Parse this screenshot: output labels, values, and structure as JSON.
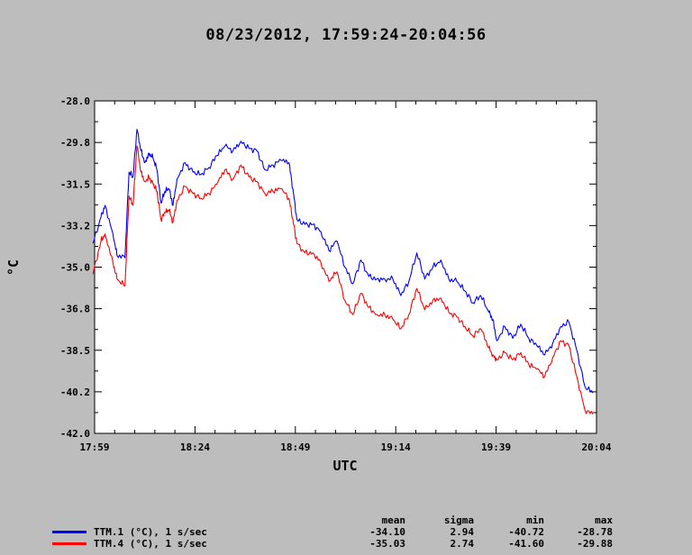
{
  "title": "08/23/2012, 17:59:24-20:04:56",
  "chart_data": {
    "type": "line",
    "title": "08/23/2012, 17:59:24-20:04:56",
    "xlabel": "UTC",
    "ylabel": "°C",
    "x_ticks": [
      "17:59",
      "18:24",
      "18:49",
      "19:14",
      "19:39",
      "20:04"
    ],
    "y_ticks": [
      "-28.0",
      "-29.8",
      "-31.5",
      "-33.2",
      "-35.0",
      "-36.8",
      "-38.5",
      "-40.2",
      "-42.0"
    ],
    "xlim": [
      "17:59:24",
      "20:04:56"
    ],
    "ylim": [
      -42.0,
      -28.0
    ],
    "grid": false,
    "series": [
      {
        "name": "TTM.1 (°C), 1 s/sec",
        "color": "#0000ff",
        "x": [
          "17:59",
          "18:01",
          "18:02",
          "18:04",
          "18:05",
          "18:07",
          "18:08",
          "18:09",
          "18:10",
          "18:11",
          "18:12",
          "18:13",
          "18:14",
          "18:15",
          "18:16",
          "18:17",
          "18:18",
          "18:19",
          "18:20",
          "18:22",
          "18:24",
          "18:26",
          "18:28",
          "18:30",
          "18:32",
          "18:34",
          "18:36",
          "18:38",
          "18:40",
          "18:42",
          "18:44",
          "18:46",
          "18:48",
          "18:49",
          "18:50",
          "18:52",
          "18:54",
          "18:56",
          "18:58",
          "19:00",
          "19:02",
          "19:04",
          "19:06",
          "19:08",
          "19:10",
          "19:12",
          "19:14",
          "19:16",
          "19:18",
          "19:20",
          "19:22",
          "19:24",
          "19:26",
          "19:28",
          "19:30",
          "19:32",
          "19:34",
          "19:36",
          "19:38",
          "19:39",
          "19:40",
          "19:42",
          "19:44",
          "19:46",
          "19:48",
          "19:50",
          "19:52",
          "19:54",
          "19:56",
          "19:58",
          "20:00",
          "20:02",
          "20:04"
        ],
        "y": [
          -34.0,
          -32.9,
          -32.4,
          -33.6,
          -34.5,
          -34.6,
          -31.0,
          -31.2,
          -29.2,
          -30.1,
          -30.6,
          -30.2,
          -30.4,
          -30.9,
          -32.3,
          -31.8,
          -31.7,
          -32.4,
          -31.3,
          -30.6,
          -31.0,
          -31.1,
          -30.8,
          -30.3,
          -29.9,
          -30.1,
          -29.7,
          -30.0,
          -30.1,
          -30.9,
          -30.7,
          -30.5,
          -30.6,
          -31.7,
          -33.0,
          -33.2,
          -33.2,
          -33.5,
          -34.3,
          -33.9,
          -35.0,
          -35.7,
          -34.7,
          -35.4,
          -35.5,
          -35.5,
          -35.5,
          -36.2,
          -35.6,
          -34.4,
          -35.5,
          -35.0,
          -34.7,
          -35.5,
          -35.6,
          -36.0,
          -36.5,
          -36.2,
          -36.9,
          -37.2,
          -38.1,
          -37.5,
          -38.0,
          -37.4,
          -38.0,
          -38.3,
          -38.7,
          -38.2,
          -37.5,
          -37.3,
          -38.5,
          -40.0,
          -40.3
        ]
      },
      {
        "name": "TTM.4 (°C), 1 s/sec",
        "color": "#ff0000",
        "x": [
          "17:59",
          "18:01",
          "18:02",
          "18:04",
          "18:05",
          "18:07",
          "18:08",
          "18:09",
          "18:10",
          "18:11",
          "18:12",
          "18:13",
          "18:14",
          "18:15",
          "18:16",
          "18:17",
          "18:18",
          "18:19",
          "18:20",
          "18:22",
          "18:24",
          "18:26",
          "18:28",
          "18:30",
          "18:32",
          "18:34",
          "18:36",
          "18:38",
          "18:40",
          "18:42",
          "18:44",
          "18:46",
          "18:48",
          "18:49",
          "18:50",
          "18:52",
          "18:54",
          "18:56",
          "18:58",
          "19:00",
          "19:02",
          "19:04",
          "19:06",
          "19:08",
          "19:10",
          "19:12",
          "19:14",
          "19:16",
          "19:18",
          "19:20",
          "19:22",
          "19:24",
          "19:26",
          "19:28",
          "19:30",
          "19:32",
          "19:34",
          "19:36",
          "19:38",
          "19:39",
          "19:40",
          "19:42",
          "19:44",
          "19:46",
          "19:48",
          "19:50",
          "19:52",
          "19:54",
          "19:56",
          "19:58",
          "20:00",
          "20:02",
          "20:04"
        ],
        "y": [
          -35.3,
          -33.9,
          -33.6,
          -34.8,
          -35.5,
          -35.8,
          -32.0,
          -32.4,
          -29.9,
          -31.0,
          -31.4,
          -31.2,
          -31.5,
          -31.8,
          -33.0,
          -32.7,
          -32.6,
          -33.1,
          -32.2,
          -31.6,
          -31.9,
          -32.1,
          -31.9,
          -31.5,
          -30.9,
          -31.3,
          -30.7,
          -31.2,
          -31.4,
          -31.9,
          -31.8,
          -31.7,
          -32.1,
          -33.0,
          -34.0,
          -34.4,
          -34.4,
          -34.8,
          -35.6,
          -35.2,
          -36.4,
          -37.0,
          -36.1,
          -36.7,
          -37.0,
          -37.0,
          -37.2,
          -37.6,
          -37.0,
          -35.9,
          -36.8,
          -36.4,
          -36.3,
          -36.9,
          -37.1,
          -37.5,
          -37.9,
          -37.6,
          -38.4,
          -38.7,
          -38.9,
          -38.6,
          -38.9,
          -38.6,
          -39.1,
          -39.3,
          -39.6,
          -38.8,
          -38.1,
          -38.3,
          -39.6,
          -41.0,
          -41.2
        ]
      }
    ]
  },
  "stats": {
    "headers": {
      "mean": "mean",
      "sigma": "sigma",
      "min": "min",
      "max": "max"
    },
    "rows": [
      {
        "name": "TTM.1 (°C), 1 s/sec",
        "color": "#0000ff",
        "mean": "-34.10",
        "sigma": "2.94",
        "min": "-40.72",
        "max": "-28.78"
      },
      {
        "name": "TTM.4 (°C), 1 s/sec",
        "color": "#ff0000",
        "mean": "-35.03",
        "sigma": "2.74",
        "min": "-41.60",
        "max": "-29.88"
      }
    ]
  }
}
